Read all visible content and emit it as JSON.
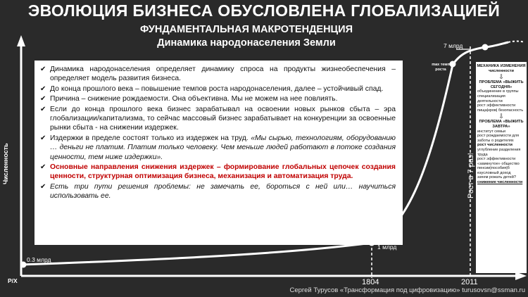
{
  "title": "ЭВОЛЮЦИЯ БИЗНЕСА ОБУСЛОВЛЕНА ГЛОБАЛИЗАЦИЕЙ",
  "subtitle1": "ФУНДАМЕНТАЛЬНАЯ МАКРОТЕНДЕНЦИЯ",
  "subtitle2": "Динамика народонаселения Земли",
  "axis": {
    "y_label": "Численность",
    "x_label": "Р/Х"
  },
  "points": {
    "start": "0.3 млрд",
    "p1804": "1 млрд",
    "max_rate": "max темп роста",
    "p2011": "7 млрд"
  },
  "years": {
    "y1804": "1804",
    "y2011": "2011"
  },
  "growth_label": "Рост в 7 раз!",
  "bullets": [
    {
      "text": "Динамика народонаселения определяет динамику спроса на продукты жизнеобеспечения – определяет модель развития бизнеса.",
      "style": "normal"
    },
    {
      "text": "До конца прошлого века – повышение темпов роста народонаселения, далее – устойчивый спад.",
      "style": "normal"
    },
    {
      "text": "Причина – снижение рождаемости. Она объективна. Мы не можем на нее повлиять.",
      "style": "normal"
    },
    {
      "text": "Если до конца прошлого века бизнес зарабатывал на освоении новых рынков сбыта – эра глобализации/капитализма, то сейчас массовый бизнес зарабатывает на конкуренции за освоенные рынки сбыта - на снижении издержек.",
      "style": "normal"
    },
    {
      "text_plain": "Издержки в пределе состоят только из издержек на труд. ",
      "text_italic": "«Мы сырью, технологиям, оборудованию … деньги не платим. Платим только человеку. Чем меньше людей работают в потоке создания ценности, тем ниже издержки».",
      "style": "mixed"
    },
    {
      "text": "Основные направления снижения издержек – формирование глобальных цепочек создания ценности, структурная оптимизация бизнеса, механизация и автоматизация труда.",
      "style": "red"
    },
    {
      "text": "Есть три пути решения проблемы: не замечать ее, бороться с ней или… научиться использовать ее.",
      "style": "italic"
    }
  ],
  "side": {
    "h1": "МЕХАНИКА ИЗМЕНЕНИЯ численности",
    "h2": "ПРОБЛЕМА «ВЫЖИТЬ СЕГОДНЯ»",
    "items1": [
      "объединение в группы",
      "специализация деятельности",
      "рост эффективности",
      "пища|кров| безопасность"
    ],
    "h3": "ПРОБЛЕМА «ВЫЖИТЬ ЗАВТРА»",
    "items2": [
      "институт семьи",
      "рост рождаемости для заботы о родителях",
      "рост численности",
      "углубление разделения труда",
      "рост эффективности",
      "«замкнутое» общество",
      "пенсии|пособия|б езусловный доход",
      "зачем рожать детей?",
      "снижение численности"
    ]
  },
  "footer": "Сергей Турусов «Трансформация под цифровизацию» turusovsn@ssman.ru",
  "colors": {
    "background": "#2a2a2a",
    "panel": "#ffffff",
    "accent_red": "#c00000",
    "curve": "#ffffff"
  }
}
